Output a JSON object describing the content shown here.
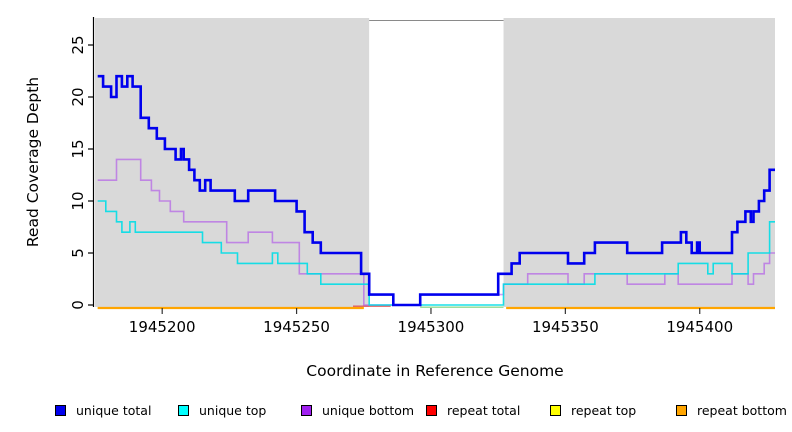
{
  "chart_data": {
    "type": "line",
    "subtype": "step-coverage",
    "title": "",
    "xlabel": "Coordinate in Reference Genome",
    "ylabel": "Read Coverage Depth",
    "xlim": [
      1945175,
      1945428
    ],
    "ylim": [
      0,
      27
    ],
    "x_ticks": [
      1945200,
      1945250,
      1945300,
      1945350,
      1945400
    ],
    "x_tick_labels": [
      "1945200",
      "1945250",
      "1945300",
      "1945350",
      "1945400"
    ],
    "y_ticks": [
      0,
      5,
      10,
      15,
      20,
      25
    ],
    "y_tick_labels": [
      "0",
      "5",
      "10",
      "15",
      "20",
      "25"
    ],
    "grid": false,
    "background": "#d9d9d9",
    "highlight_region": {
      "x0": 1945277,
      "x1": 1945327,
      "color": "#ffffff"
    },
    "series": [
      {
        "name": "repeat-top",
        "label": "repeat top",
        "color": "#ffff00",
        "line_width": 1.4,
        "opacity": 1,
        "dy": 3,
        "segments": [
          [
            [
              1945176,
              0
            ],
            [
              1945275,
              0
            ]
          ],
          [
            [
              1945328,
              0
            ],
            [
              1945428,
              0
            ]
          ]
        ]
      },
      {
        "name": "repeat-bottom",
        "label": "repeat bottom",
        "color": "#ffa500",
        "line_width": 2.2,
        "opacity": 1,
        "dy": 3,
        "segments": [
          [
            [
              1945176,
              0
            ],
            [
              1945275,
              0
            ]
          ],
          [
            [
              1945328,
              0
            ],
            [
              1945428,
              0
            ]
          ]
        ]
      },
      {
        "name": "repeat-total",
        "label": "repeat total",
        "color": "#e04848",
        "line_width": 1.4,
        "opacity": 0.85,
        "dy": 1.2,
        "segments": [
          [
            [
              1945271,
              0
            ],
            [
              1945285,
              0
            ]
          ]
        ]
      },
      {
        "name": "region-marker",
        "label": "",
        "color": "#90d890",
        "line_width": 1.4,
        "opacity": 1,
        "dy": 2.2,
        "segments": [
          [
            [
              1945296,
              0
            ],
            [
              1945327,
              0
            ]
          ]
        ]
      },
      {
        "name": "unique-bottom",
        "label": "unique bottom",
        "color": "#a020f0",
        "line_width": 1.6,
        "opacity": 0.45,
        "dy": 0,
        "segments": [
          [
            [
              1945176,
              12
            ],
            [
              1945183,
              14
            ],
            [
              1945192,
              12
            ],
            [
              1945196,
              11
            ],
            [
              1945199,
              10
            ],
            [
              1945203,
              9
            ],
            [
              1945208,
              8
            ],
            [
              1945224,
              6
            ],
            [
              1945232,
              7
            ],
            [
              1945241,
              6
            ],
            [
              1945251,
              3
            ],
            [
              1945275,
              0
            ],
            [
              1945296,
              1
            ],
            [
              1945327,
              2
            ],
            [
              1945336,
              3
            ],
            [
              1945351,
              2
            ],
            [
              1945357,
              3
            ],
            [
              1945373,
              2
            ],
            [
              1945387,
              3
            ],
            [
              1945392,
              2
            ],
            [
              1945412,
              3
            ],
            [
              1945418,
              2
            ],
            [
              1945420,
              3
            ],
            [
              1945424,
              4
            ],
            [
              1945426,
              5
            ],
            [
              1945428,
              5
            ]
          ]
        ]
      },
      {
        "name": "unique-top",
        "label": "unique top",
        "color": "#00dde6",
        "line_width": 1.6,
        "opacity": 0.9,
        "dy": 0,
        "segments": [
          [
            [
              1945176,
              10
            ],
            [
              1945179,
              9
            ],
            [
              1945183,
              8
            ],
            [
              1945185,
              7
            ],
            [
              1945188,
              8
            ],
            [
              1945190,
              7
            ],
            [
              1945215,
              6
            ],
            [
              1945222,
              5
            ],
            [
              1945228,
              4
            ],
            [
              1945241,
              5
            ],
            [
              1945243,
              4
            ],
            [
              1945254,
              3
            ],
            [
              1945259,
              2
            ],
            [
              1945277,
              0
            ],
            [
              1945327,
              2
            ],
            [
              1945361,
              3
            ],
            [
              1945392,
              4
            ],
            [
              1945403,
              3
            ],
            [
              1945405,
              4
            ],
            [
              1945412,
              3
            ],
            [
              1945418,
              5
            ],
            [
              1945426,
              8
            ],
            [
              1945428,
              8
            ]
          ]
        ]
      },
      {
        "name": "unique-total",
        "label": "unique total",
        "color": "#0000ee",
        "line_width": 2.6,
        "opacity": 1,
        "dy": 0,
        "segments": [
          [
            [
              1945176,
              22
            ],
            [
              1945178,
              21
            ],
            [
              1945181,
              20
            ],
            [
              1945183,
              22
            ],
            [
              1945185,
              21
            ],
            [
              1945187,
              22
            ],
            [
              1945189,
              21
            ],
            [
              1945192,
              18
            ],
            [
              1945195,
              17
            ],
            [
              1945198,
              16
            ],
            [
              1945201,
              15
            ],
            [
              1945205,
              14
            ],
            [
              1945207,
              15
            ],
            [
              1945208,
              14
            ],
            [
              1945210,
              13
            ],
            [
              1945212,
              12
            ],
            [
              1945214,
              11
            ],
            [
              1945216,
              12
            ],
            [
              1945218,
              11
            ],
            [
              1945227,
              10
            ],
            [
              1945232,
              11
            ],
            [
              1945242,
              10
            ],
            [
              1945250,
              9
            ],
            [
              1945253,
              7
            ],
            [
              1945256,
              6
            ],
            [
              1945259,
              5
            ],
            [
              1945274,
              3
            ],
            [
              1945277,
              1
            ],
            [
              1945286,
              0
            ],
            [
              1945296,
              1
            ],
            [
              1945325,
              3
            ],
            [
              1945330,
              4
            ],
            [
              1945333,
              5
            ],
            [
              1945351,
              4
            ],
            [
              1945357,
              5
            ],
            [
              1945361,
              6
            ],
            [
              1945373,
              5
            ],
            [
              1945386,
              6
            ],
            [
              1945393,
              7
            ],
            [
              1945395,
              6
            ],
            [
              1945397,
              5
            ],
            [
              1945399,
              6
            ],
            [
              1945400,
              5
            ],
            [
              1945412,
              7
            ],
            [
              1945414,
              8
            ],
            [
              1945417,
              9
            ],
            [
              1945419,
              8
            ],
            [
              1945420,
              9
            ],
            [
              1945422,
              10
            ],
            [
              1945424,
              11
            ],
            [
              1945426,
              13
            ],
            [
              1945428,
              13
            ]
          ]
        ]
      }
    ]
  },
  "axes": {
    "x_title": "Coordinate in Reference Genome",
    "y_title": "Read Coverage Depth"
  },
  "legend": {
    "items": [
      {
        "label": "unique total",
        "color": "#0000ee"
      },
      {
        "label": "unique top",
        "color": "#00ffff"
      },
      {
        "label": "unique bottom",
        "color": "#a020f0"
      },
      {
        "label": "repeat total",
        "color": "#ff0000"
      },
      {
        "label": "repeat top",
        "color": "#ffff00"
      },
      {
        "label": "repeat bottom",
        "color": "#ffa500"
      }
    ]
  }
}
